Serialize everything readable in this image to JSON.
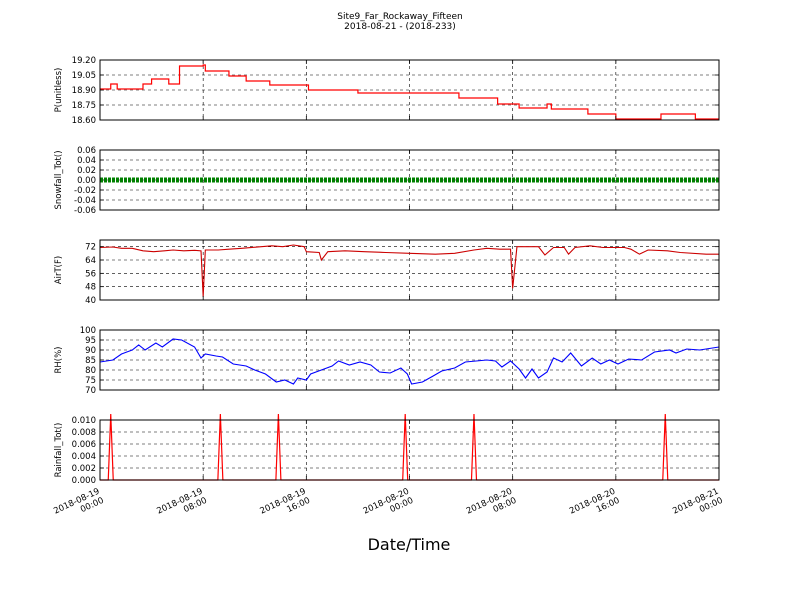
{
  "chart_data": {
    "type": "line",
    "title": "Site9_Far_Rockaway_Fifteen",
    "subtitle": "2018-08-21 - (2018-233)",
    "xlabel": "Date/Time",
    "x_range": [
      "2018-08-19 00:00",
      "2018-08-21 00:00"
    ],
    "x_ticks": [
      {
        "value": "2018-08-19 00:00",
        "line1": "2018-08-19",
        "line2": "00:00"
      },
      {
        "value": "2018-08-19 08:00",
        "line1": "2018-08-19",
        "line2": "08:00"
      },
      {
        "value": "2018-08-19 16:00",
        "line1": "2018-08-19",
        "line2": "16:00"
      },
      {
        "value": "2018-08-20 00:00",
        "line1": "2018-08-20",
        "line2": "00:00"
      },
      {
        "value": "2018-08-20 08:00",
        "line1": "2018-08-20",
        "line2": "08:00"
      },
      {
        "value": "2018-08-20 16:00",
        "line1": "2018-08-20",
        "line2": "16:00"
      },
      {
        "value": "2018-08-21 00:00",
        "line1": "2018-08-21",
        "line2": "00:00"
      }
    ],
    "grid": true,
    "panels": [
      {
        "ylabel": "P(unitless)",
        "ylim": [
          18.6,
          19.2
        ],
        "yticks": [
          "18.60",
          "18.75",
          "18.90",
          "19.05",
          "19.20"
        ],
        "color": "#ff0000",
        "style": "step",
        "points": [
          [
            "2018-08-19 00:00",
            18.91
          ],
          [
            "2018-08-19 00:40",
            18.91
          ],
          [
            "2018-08-19 00:50",
            18.96
          ],
          [
            "2018-08-19 01:20",
            18.91
          ],
          [
            "2018-08-19 03:10",
            18.91
          ],
          [
            "2018-08-19 03:20",
            18.96
          ],
          [
            "2018-08-19 03:50",
            18.96
          ],
          [
            "2018-08-19 04:00",
            19.01
          ],
          [
            "2018-08-19 04:50",
            19.01
          ],
          [
            "2018-08-19 05:20",
            18.96
          ],
          [
            "2018-08-19 06:10",
            19.14
          ],
          [
            "2018-08-19 08:00",
            19.15
          ],
          [
            "2018-08-19 08:10",
            19.09
          ],
          [
            "2018-08-19 09:50",
            19.09
          ],
          [
            "2018-08-19 10:00",
            19.04
          ],
          [
            "2018-08-19 11:10",
            19.04
          ],
          [
            "2018-08-19 11:20",
            18.99
          ],
          [
            "2018-08-19 13:00",
            18.99
          ],
          [
            "2018-08-19 13:10",
            18.95
          ],
          [
            "2018-08-19 16:00",
            18.95
          ],
          [
            "2018-08-19 16:10",
            18.9
          ],
          [
            "2018-08-19 19:50",
            18.9
          ],
          [
            "2018-08-19 20:00",
            18.87
          ],
          [
            "2018-08-20 03:40",
            18.87
          ],
          [
            "2018-08-20 03:50",
            18.82
          ],
          [
            "2018-08-20 06:40",
            18.82
          ],
          [
            "2018-08-20 06:50",
            18.76
          ],
          [
            "2018-08-20 08:20",
            18.76
          ],
          [
            "2018-08-20 08:30",
            18.72
          ],
          [
            "2018-08-20 10:20",
            18.72
          ],
          [
            "2018-08-20 10:40",
            18.76
          ],
          [
            "2018-08-20 11:00",
            18.71
          ],
          [
            "2018-08-20 13:40",
            18.71
          ],
          [
            "2018-08-20 13:50",
            18.66
          ],
          [
            "2018-08-20 15:40",
            18.66
          ],
          [
            "2018-08-20 16:00",
            18.61
          ],
          [
            "2018-08-20 19:20",
            18.61
          ],
          [
            "2018-08-20 19:30",
            18.66
          ],
          [
            "2018-08-20 22:00",
            18.66
          ],
          [
            "2018-08-20 22:10",
            18.61
          ],
          [
            "2018-08-21 00:00",
            18.61
          ]
        ]
      },
      {
        "ylabel": "Snowfall_Tot()",
        "ylim": [
          -0.06,
          0.06
        ],
        "yticks": [
          "-0.06",
          "-0.04",
          "-0.02",
          "0.00",
          "0.02",
          "0.04",
          "0.06"
        ],
        "color": "#008000",
        "style": "thick",
        "points": [
          [
            "2018-08-19 00:00",
            0.0
          ],
          [
            "2018-08-21 00:00",
            0.0
          ]
        ]
      },
      {
        "ylabel": "AirT(F)",
        "ylim": [
          40,
          76
        ],
        "yticks": [
          "40",
          "48",
          "56",
          "64",
          "72"
        ],
        "color": "#cc0000",
        "style": "line",
        "points": [
          [
            "2018-08-19 00:00",
            71.5
          ],
          [
            "2018-08-19 01:00",
            71.8
          ],
          [
            "2018-08-19 01:40",
            71.0
          ],
          [
            "2018-08-19 02:30",
            71.0
          ],
          [
            "2018-08-19 03:20",
            69.5
          ],
          [
            "2018-08-19 04:10",
            69.0
          ],
          [
            "2018-08-19 05:00",
            69.5
          ],
          [
            "2018-08-19 05:40",
            70.0
          ],
          [
            "2018-08-19 06:30",
            69.5
          ],
          [
            "2018-08-19 07:20",
            69.8
          ],
          [
            "2018-08-19 07:50",
            69.5
          ],
          [
            "2018-08-19 08:00",
            42.0
          ],
          [
            "2018-08-19 08:10",
            70.0
          ],
          [
            "2018-08-19 09:10",
            70.0
          ],
          [
            "2018-08-19 10:00",
            70.5
          ],
          [
            "2018-08-19 11:00",
            71.0
          ],
          [
            "2018-08-19 12:30",
            72.0
          ],
          [
            "2018-08-19 13:20",
            72.5
          ],
          [
            "2018-08-19 14:10",
            72.0
          ],
          [
            "2018-08-19 15:00",
            73.0
          ],
          [
            "2018-08-19 15:50",
            72.0
          ],
          [
            "2018-08-19 16:00",
            69.0
          ],
          [
            "2018-08-19 17:00",
            68.5
          ],
          [
            "2018-08-19 17:10",
            64.0
          ],
          [
            "2018-08-19 17:40",
            69.0
          ],
          [
            "2018-08-19 19:00",
            69.5
          ],
          [
            "2018-08-19 20:30",
            69.0
          ],
          [
            "2018-08-19 22:10",
            68.5
          ],
          [
            "2018-08-20 00:00",
            68.0
          ],
          [
            "2018-08-20 02:00",
            67.5
          ],
          [
            "2018-08-20 03:30",
            68.0
          ],
          [
            "2018-08-20 05:00",
            70.0
          ],
          [
            "2018-08-20 06:00",
            71.0
          ],
          [
            "2018-08-20 07:00",
            70.5
          ],
          [
            "2018-08-20 07:50",
            70.5
          ],
          [
            "2018-08-20 08:00",
            47.0
          ],
          [
            "2018-08-20 08:20",
            72.0
          ],
          [
            "2018-08-20 10:00",
            72.0
          ],
          [
            "2018-08-20 10:30",
            67.0
          ],
          [
            "2018-08-20 11:10",
            71.5
          ],
          [
            "2018-08-20 12:00",
            71.5
          ],
          [
            "2018-08-20 12:20",
            67.5
          ],
          [
            "2018-08-20 12:50",
            71.5
          ],
          [
            "2018-08-20 14:00",
            72.5
          ],
          [
            "2018-08-20 15:00",
            71.5
          ],
          [
            "2018-08-20 16:40",
            71.5
          ],
          [
            "2018-08-20 17:10",
            70.5
          ],
          [
            "2018-08-20 17:50",
            67.5
          ],
          [
            "2018-08-20 18:30",
            70.0
          ],
          [
            "2018-08-20 20:00",
            69.5
          ],
          [
            "2018-08-20 21:00",
            68.5
          ],
          [
            "2018-08-20 23:00",
            67.5
          ],
          [
            "2018-08-21 00:00",
            67.5
          ]
        ]
      },
      {
        "ylabel": "RH(%)",
        "ylim": [
          70,
          100
        ],
        "yticks": [
          "70",
          "75",
          "80",
          "85",
          "90",
          "95",
          "100"
        ],
        "color": "#0000ff",
        "style": "line",
        "points": [
          [
            "2018-08-19 00:00",
            84.0
          ],
          [
            "2018-08-19 00:30",
            84.5
          ],
          [
            "2018-08-19 01:00",
            85.0
          ],
          [
            "2018-08-19 01:40",
            88.0
          ],
          [
            "2018-08-19 02:30",
            90.0
          ],
          [
            "2018-08-19 03:00",
            92.5
          ],
          [
            "2018-08-19 03:30",
            90.0
          ],
          [
            "2018-08-19 04:20",
            93.5
          ],
          [
            "2018-08-19 04:50",
            91.5
          ],
          [
            "2018-08-19 05:40",
            95.5
          ],
          [
            "2018-08-19 06:20",
            95.0
          ],
          [
            "2018-08-19 07:20",
            91.5
          ],
          [
            "2018-08-19 07:50",
            86.0
          ],
          [
            "2018-08-19 08:10",
            88.0
          ],
          [
            "2018-08-19 09:00",
            87.0
          ],
          [
            "2018-08-19 09:30",
            86.5
          ],
          [
            "2018-08-19 10:20",
            83.0
          ],
          [
            "2018-08-19 11:20",
            82.0
          ],
          [
            "2018-08-19 12:00",
            80.0
          ],
          [
            "2018-08-19 12:50",
            78.0
          ],
          [
            "2018-08-19 13:40",
            74.0
          ],
          [
            "2018-08-19 14:20",
            75.0
          ],
          [
            "2018-08-19 15:00",
            73.0
          ],
          [
            "2018-08-19 15:20",
            76.0
          ],
          [
            "2018-08-19 16:00",
            75.0
          ],
          [
            "2018-08-19 16:20",
            78.0
          ],
          [
            "2018-08-19 17:10",
            80.0
          ],
          [
            "2018-08-19 18:00",
            82.0
          ],
          [
            "2018-08-19 18:30",
            84.5
          ],
          [
            "2018-08-19 19:20",
            82.5
          ],
          [
            "2018-08-19 20:10",
            84.0
          ],
          [
            "2018-08-19 21:00",
            82.5
          ],
          [
            "2018-08-19 21:40",
            79.0
          ],
          [
            "2018-08-19 22:30",
            78.5
          ],
          [
            "2018-08-19 23:20",
            81.0
          ],
          [
            "2018-08-19 23:50",
            78.0
          ],
          [
            "2018-08-20 00:10",
            73.0
          ],
          [
            "2018-08-20 01:00",
            74.0
          ],
          [
            "2018-08-20 01:50",
            77.0
          ],
          [
            "2018-08-20 02:30",
            79.5
          ],
          [
            "2018-08-20 03:30",
            81.0
          ],
          [
            "2018-08-20 04:20",
            84.0
          ],
          [
            "2018-08-20 05:10",
            84.5
          ],
          [
            "2018-08-20 06:00",
            85.0
          ],
          [
            "2018-08-20 06:40",
            84.5
          ],
          [
            "2018-08-20 07:10",
            81.5
          ],
          [
            "2018-08-20 07:50",
            84.5
          ],
          [
            "2018-08-20 08:30",
            80.5
          ],
          [
            "2018-08-20 09:00",
            76.0
          ],
          [
            "2018-08-20 09:30",
            80.5
          ],
          [
            "2018-08-20 10:00",
            76.0
          ],
          [
            "2018-08-20 10:40",
            79.0
          ],
          [
            "2018-08-20 11:10",
            86.0
          ],
          [
            "2018-08-20 11:50",
            84.0
          ],
          [
            "2018-08-20 12:30",
            88.5
          ],
          [
            "2018-08-20 13:20",
            82.0
          ],
          [
            "2018-08-20 14:10",
            86.0
          ],
          [
            "2018-08-20 14:50",
            83.0
          ],
          [
            "2018-08-20 15:30",
            85.0
          ],
          [
            "2018-08-20 16:10",
            83.0
          ],
          [
            "2018-08-20 17:00",
            85.5
          ],
          [
            "2018-08-20 18:00",
            85.0
          ],
          [
            "2018-08-20 19:00",
            89.0
          ],
          [
            "2018-08-20 20:10",
            90.0
          ],
          [
            "2018-08-20 20:40",
            88.5
          ],
          [
            "2018-08-20 21:30",
            90.5
          ],
          [
            "2018-08-20 22:30",
            90.0
          ],
          [
            "2018-08-21 00:00",
            91.5
          ]
        ]
      },
      {
        "ylabel": "Rainfall_Tot()",
        "ylim": [
          0.0,
          0.01
        ],
        "yticks": [
          "0.000",
          "0.002",
          "0.004",
          "0.006",
          "0.008",
          "0.010"
        ],
        "color": "#ff0000",
        "style": "spikes",
        "spikes": [
          "2018-08-19 00:50",
          "2018-08-19 09:20",
          "2018-08-19 13:50",
          "2018-08-19 23:40",
          "2018-08-20 05:00",
          "2018-08-20 19:50"
        ]
      }
    ]
  }
}
